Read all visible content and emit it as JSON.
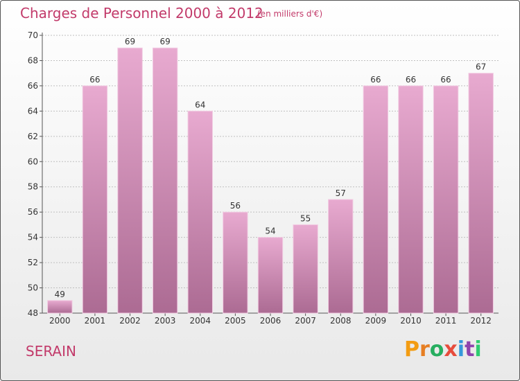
{
  "header": {
    "title": "Charges de Personnel 2000 à 2012",
    "unit": "(en milliers d'€)"
  },
  "footer": {
    "city": "SERAIN",
    "logo_text": "Proxiti"
  },
  "colors": {
    "title": "#c23a6a",
    "bar_top": "#e8aad0",
    "bar_bottom": "#ac6b93",
    "logo_letters": [
      "#f39c12",
      "#e67e22",
      "#27ae60",
      "#e74c3c",
      "#3498db",
      "#8e44ad",
      "#2ecc71"
    ]
  },
  "chart_data": {
    "type": "bar",
    "categories": [
      "2000",
      "2001",
      "2002",
      "2003",
      "2004",
      "2005",
      "2006",
      "2007",
      "2008",
      "2009",
      "2010",
      "2011",
      "2012"
    ],
    "values": [
      49,
      66,
      69,
      69,
      64,
      56,
      54,
      55,
      57,
      66,
      66,
      66,
      67
    ],
    "title": "Charges de Personnel 2000 à 2012",
    "xlabel": "",
    "ylabel": "",
    "ylim": [
      48,
      70
    ],
    "yticks": [
      48,
      50,
      52,
      54,
      56,
      58,
      60,
      62,
      64,
      66,
      68,
      70
    ],
    "grid": true,
    "data_labels": true
  }
}
